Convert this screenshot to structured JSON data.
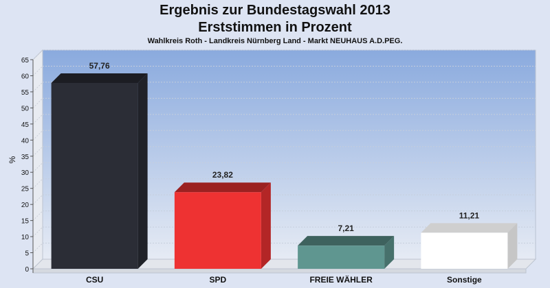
{
  "chart_data": {
    "type": "bar",
    "title": "Ergebnis zur Bundestagswahl 2013",
    "subtitle": "Erststimmen in Prozent",
    "caption": "Wahlkreis Roth - Landkreis Nürnberg Land - Markt NEUHAUS A.D.PEG.",
    "ylabel": "%",
    "ylim": [
      0,
      65
    ],
    "yticks": [
      0,
      5,
      10,
      15,
      20,
      25,
      30,
      35,
      40,
      45,
      50,
      55,
      60,
      65
    ],
    "grid": true,
    "categories": [
      "CSU",
      "SPD",
      "FREIE WÄHLER",
      "Sonstige"
    ],
    "values": [
      57.76,
      23.82,
      7.21,
      11.21
    ],
    "value_labels": [
      "57,76",
      "23,82",
      "7,21",
      "11,21"
    ],
    "colors": [
      "#2b2d36",
      "#ee3232",
      "#5f9690",
      "#ffffff"
    ]
  }
}
